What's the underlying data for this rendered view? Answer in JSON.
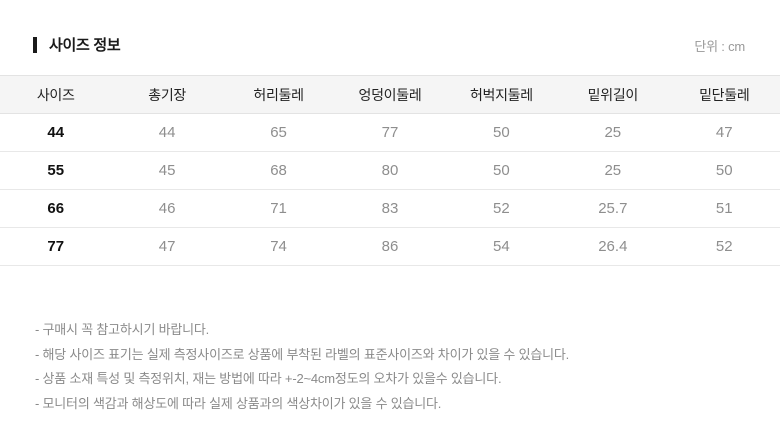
{
  "header": {
    "title": "사이즈 정보",
    "unit_label": "단위 : cm"
  },
  "table": {
    "columns": [
      "사이즈",
      "총기장",
      "허리둘레",
      "엉덩이둘레",
      "허벅지둘레",
      "밑위길이",
      "밑단둘레"
    ],
    "rows": [
      {
        "size": "44",
        "values": [
          "44",
          "65",
          "77",
          "50",
          "25",
          "47"
        ]
      },
      {
        "size": "55",
        "values": [
          "45",
          "68",
          "80",
          "50",
          "25",
          "50"
        ]
      },
      {
        "size": "66",
        "values": [
          "46",
          "71",
          "83",
          "52",
          "25.7",
          "51"
        ]
      },
      {
        "size": "77",
        "values": [
          "47",
          "74",
          "86",
          "54",
          "26.4",
          "52"
        ]
      }
    ]
  },
  "notes": [
    "- 구매시 꼭 참고하시기 바랍니다.",
    "- 해당 사이즈 표기는 실제 측정사이즈로 상품에 부착된 라벨의 표준사이즈와 차이가 있을 수 있습니다.",
    "- 상품 소재 특성 및 측정위치, 재는 방법에 따라 +-2~4cm정도의 오차가 있을수 있습니다.",
    "- 모니터의 색감과 해상도에 따라 실제 상품과의 색상차이가 있을 수 있습니다."
  ],
  "colors": {
    "header_bg": "#f5f5f5",
    "border": "#e8e8e8",
    "title_text": "#1a1a1a",
    "value_text": "#8e8e8e",
    "size_text": "#111111",
    "note_text": "#8a8a8a"
  }
}
